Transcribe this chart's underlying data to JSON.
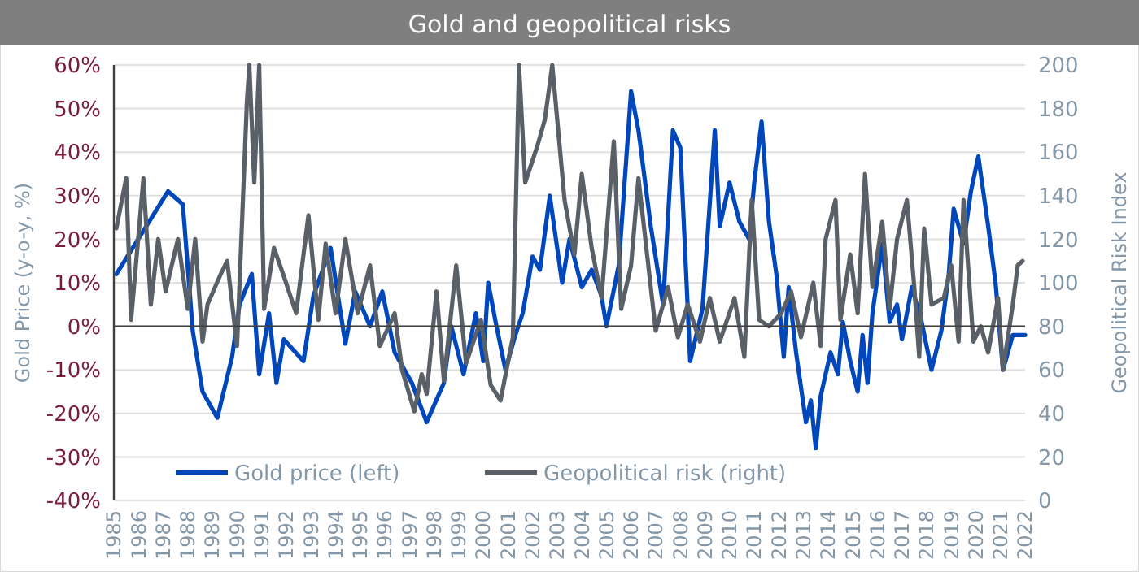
{
  "chart_data": {
    "type": "line",
    "title": "Gold and geopolitical risks",
    "ylabel": "Gold Price (y-o-y, %)",
    "y2label": "Geopolitical Risk Index",
    "xlim": [
      1985,
      2022
    ],
    "xticks": [
      1985,
      1986,
      1987,
      1988,
      1989,
      1990,
      1991,
      1992,
      1993,
      1994,
      1995,
      1996,
      1997,
      1998,
      1999,
      2000,
      2001,
      2002,
      2003,
      2004,
      2005,
      2006,
      2007,
      2008,
      2009,
      2010,
      2011,
      2012,
      2013,
      2014,
      2015,
      2016,
      2017,
      2018,
      2019,
      2020,
      2021,
      2022
    ],
    "ylim": [
      -40,
      60
    ],
    "yticks": [
      {
        "value": -40,
        "label": "-40%"
      },
      {
        "value": -30,
        "label": "-30%"
      },
      {
        "value": -20,
        "label": "-20%"
      },
      {
        "value": -10,
        "label": "-10%"
      },
      {
        "value": 0,
        "label": "0%"
      },
      {
        "value": 10,
        "label": "10%"
      },
      {
        "value": 20,
        "label": "20%"
      },
      {
        "value": 30,
        "label": "30%"
      },
      {
        "value": 40,
        "label": "40%"
      },
      {
        "value": 50,
        "label": "50%"
      },
      {
        "value": 60,
        "label": "60%"
      }
    ],
    "y2lim": [
      0,
      200
    ],
    "y2ticks": [
      0,
      20,
      40,
      60,
      80,
      100,
      120,
      140,
      160,
      180,
      200
    ],
    "grid": "y",
    "legend": "bottom",
    "line_style": "solid",
    "series": [
      {
        "name": "Gold price (left)",
        "color": "#0047bb",
        "x": [
          1985.1,
          1987.2,
          1987.8,
          1988.2,
          1988.6,
          1989.2,
          1989.8,
          1990.1,
          1990.6,
          1990.9,
          1991.3,
          1991.6,
          1991.9,
          1992.7,
          1993.1,
          1993.8,
          1994.4,
          1994.8,
          1995.4,
          1995.9,
          1996.4,
          1997.1,
          1997.7,
          1998.4,
          1998.7,
          1999.2,
          1999.7,
          2000.0,
          2000.2,
          2000.5,
          2000.9,
          2001.3,
          2001.6,
          2002.0,
          2002.3,
          2002.7,
          2003.2,
          2003.5,
          2004.0,
          2004.4,
          2004.8,
          2005.0,
          2005.5,
          2006.0,
          2006.3,
          2006.8,
          2007.3,
          2007.7,
          2008.0,
          2008.4,
          2008.9,
          2009.4,
          2009.6,
          2010.0,
          2010.4,
          2010.8,
          2011.0,
          2011.3,
          2011.6,
          2011.9,
          2012.2,
          2012.4,
          2012.7,
          2013.1,
          2013.3,
          2013.5,
          2013.7,
          2014.1,
          2014.4,
          2014.6,
          2014.9,
          2015.2,
          2015.4,
          2015.6,
          2015.8,
          2016.2,
          2016.5,
          2016.8,
          2017.0,
          2017.4,
          2017.8,
          2018.2,
          2018.6,
          2018.9,
          2019.1,
          2019.5,
          2019.8,
          2020.1,
          2020.5,
          2020.8,
          2021.1,
          2021.5,
          2022.0
        ],
        "values": [
          12,
          31,
          28,
          -1,
          -15,
          -21,
          -7,
          5,
          12,
          -11,
          3,
          -13,
          -3,
          -8,
          7,
          18,
          -4,
          8,
          0,
          8,
          -6,
          -13,
          -22,
          -13,
          0,
          -11,
          3,
          -8,
          10,
          1,
          -10,
          -2,
          3,
          16,
          13,
          30,
          10,
          20,
          9,
          13,
          7,
          0,
          14,
          54,
          45,
          23,
          5,
          45,
          41,
          -8,
          4,
          45,
          23,
          33,
          24,
          20,
          33,
          47,
          24,
          12,
          -7,
          9,
          -6,
          -22,
          -17,
          -28,
          -16,
          -6,
          -11,
          1,
          -8,
          -15,
          -2,
          -13,
          3,
          19,
          1,
          5,
          -3,
          9,
          1,
          -10,
          -1,
          12,
          27,
          19,
          31,
          39,
          23,
          10,
          -10,
          -2,
          -2
        ]
      },
      {
        "name": "Geopolitical risk (right)",
        "color": "#5a6068",
        "axis": "y2",
        "x": [
          1985.1,
          1985.5,
          1985.7,
          1986.2,
          1986.5,
          1986.8,
          1987.1,
          1987.6,
          1988.0,
          1988.3,
          1988.6,
          1988.8,
          1989.3,
          1989.6,
          1990.0,
          1990.4,
          1990.5,
          1990.7,
          1990.9,
          1991.1,
          1991.5,
          1991.9,
          1992.4,
          1992.9,
          1993.3,
          1993.6,
          1994.0,
          1994.4,
          1994.9,
          1995.4,
          1995.8,
          1996.4,
          1996.7,
          1997.2,
          1997.5,
          1997.7,
          1998.1,
          1998.4,
          1998.9,
          1999.3,
          1999.9,
          2000.3,
          2000.7,
          2001.2,
          2001.45,
          2001.7,
          2002.2,
          2002.5,
          2002.8,
          2003.3,
          2003.7,
          2004.0,
          2004.4,
          2004.8,
          2005.3,
          2005.6,
          2006.0,
          2006.3,
          2006.7,
          2007.0,
          2007.5,
          2007.9,
          2008.3,
          2008.8,
          2009.2,
          2009.6,
          2010.2,
          2010.6,
          2010.9,
          2011.2,
          2011.6,
          2012.1,
          2012.5,
          2012.9,
          2013.4,
          2013.7,
          2013.9,
          2014.3,
          2014.5,
          2014.9,
          2015.2,
          2015.5,
          2015.8,
          2016.2,
          2016.5,
          2016.8,
          2017.2,
          2017.5,
          2017.7,
          2017.9,
          2018.2,
          2018.7,
          2019.0,
          2019.3,
          2019.5,
          2019.9,
          2020.2,
          2020.5,
          2020.9,
          2021.1,
          2021.5,
          2021.7,
          2021.9
        ],
        "values": [
          125,
          148,
          83,
          148,
          90,
          120,
          96,
          120,
          88,
          120,
          73,
          90,
          103,
          110,
          71,
          183,
          200,
          146,
          200,
          88,
          116,
          103,
          86,
          131,
          83,
          118,
          86,
          120,
          86,
          108,
          71,
          86,
          60,
          41,
          58,
          49,
          96,
          55,
          108,
          63,
          83,
          53,
          46,
          75,
          200,
          146,
          163,
          175,
          200,
          138,
          113,
          150,
          116,
          93,
          165,
          88,
          108,
          148,
          108,
          78,
          98,
          75,
          90,
          73,
          93,
          73,
          93,
          66,
          138,
          83,
          80,
          86,
          96,
          75,
          100,
          71,
          120,
          138,
          83,
          113,
          86,
          150,
          98,
          128,
          88,
          120,
          138,
          98,
          66,
          125,
          90,
          93,
          108,
          73,
          138,
          73,
          80,
          68,
          93,
          60,
          90,
          108,
          110
        ]
      }
    ]
  }
}
